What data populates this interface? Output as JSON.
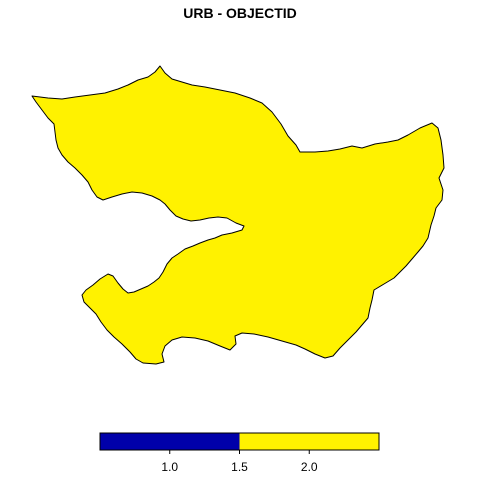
{
  "title": "URB - OBJECTID",
  "feature": {
    "name": "URB",
    "fill_color": "#FFF200",
    "outline_color": "#000000"
  },
  "legend": {
    "type": "color-ramp",
    "range": [
      0.5,
      2.5
    ],
    "bins": [
      {
        "from": 0.5,
        "to": 1.5,
        "color": "#0000AA"
      },
      {
        "from": 1.5,
        "to": 2.5,
        "color": "#FFF200"
      }
    ],
    "ticks": [
      {
        "value": 1.0,
        "label": "1.0"
      },
      {
        "value": 1.5,
        "label": "1.5"
      },
      {
        "value": 2.0,
        "label": "2.0"
      }
    ]
  }
}
